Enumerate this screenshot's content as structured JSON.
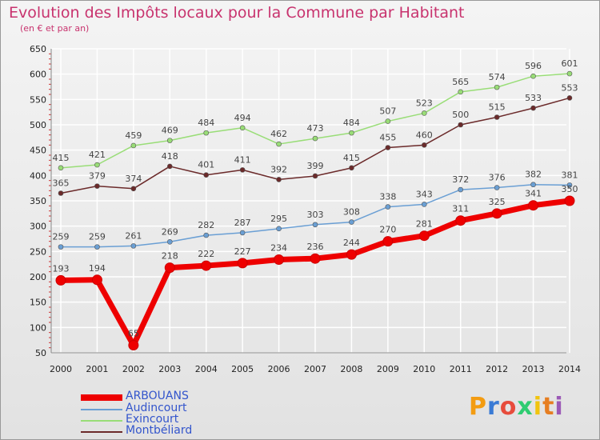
{
  "title": "Evolution des Impôts locaux pour la Commune par Habitant",
  "subtitle": "(en € et par an)",
  "logo": {
    "text": "Proxiti",
    "letters": [
      "P",
      "r",
      "o",
      "x",
      "i",
      "t",
      "i"
    ],
    "colors": [
      "#f39c12",
      "#3a7bd5",
      "#e74c3c",
      "#2ecc71",
      "#f1c40f",
      "#e67e22",
      "#9b59b6"
    ]
  },
  "colors": {
    "ARBOUANS": "#ee0000",
    "Audincourt": "#6a9fd4",
    "Exincourt": "#99dd77",
    "Montbéliard": "#6b2a2a",
    "axis_text": "#222222",
    "label_text": "#444444",
    "grid": "#ffffff"
  },
  "chart_data": {
    "type": "line",
    "title": "Evolution des Impôts locaux pour la Commune par Habitant",
    "subtitle": "(en € et par an)",
    "xlabel": "",
    "ylabel": "",
    "ylim": [
      50,
      650
    ],
    "yticks": [
      50,
      100,
      150,
      200,
      250,
      300,
      350,
      400,
      450,
      500,
      550,
      600,
      650
    ],
    "x": [
      "2000",
      "2001",
      "2002",
      "2003",
      "2004",
      "2005",
      "2006",
      "2007",
      "2008",
      "2009",
      "2010",
      "2011",
      "2012",
      "2013",
      "2014"
    ],
    "grid": true,
    "legend_position": "bottom-left",
    "series": [
      {
        "name": "ARBOUANS",
        "values": [
          193,
          194,
          65,
          218,
          222,
          227,
          234,
          236,
          244,
          270,
          281,
          311,
          325,
          341,
          350
        ],
        "labels": [
          "193",
          "194",
          "65",
          "218",
          "222",
          "227",
          "234",
          "236",
          "244",
          "270",
          "281",
          "311",
          "325",
          "341",
          "350"
        ]
      },
      {
        "name": "Audincourt",
        "values": [
          259,
          259,
          261,
          269,
          282,
          287,
          295,
          303,
          308,
          338,
          343,
          372,
          376,
          382,
          381
        ],
        "labels": [
          "259",
          "259",
          "261",
          "269",
          "282",
          "287",
          "295",
          "303",
          "308",
          "338",
          "343",
          "372",
          "376",
          "382",
          "381"
        ]
      },
      {
        "name": "Exincourt",
        "values": [
          415,
          421,
          459,
          469,
          484,
          494,
          462,
          473,
          484,
          507,
          523,
          565,
          574,
          596,
          601
        ],
        "labels": [
          "415",
          "421",
          "459",
          "469",
          "484",
          "494",
          "462",
          "473",
          "484",
          "507",
          "523",
          "565",
          "574",
          "596",
          "601"
        ]
      },
      {
        "name": "Montbéliard",
        "values": [
          365,
          379,
          374,
          418,
          401,
          411,
          392,
          399,
          415,
          455,
          460,
          500,
          515,
          533,
          553
        ],
        "labels": [
          "365",
          "379",
          "374",
          "418",
          "401",
          "411",
          "392",
          "399",
          "415",
          "455",
          "460",
          "500",
          "515",
          "533",
          "553"
        ]
      }
    ]
  }
}
